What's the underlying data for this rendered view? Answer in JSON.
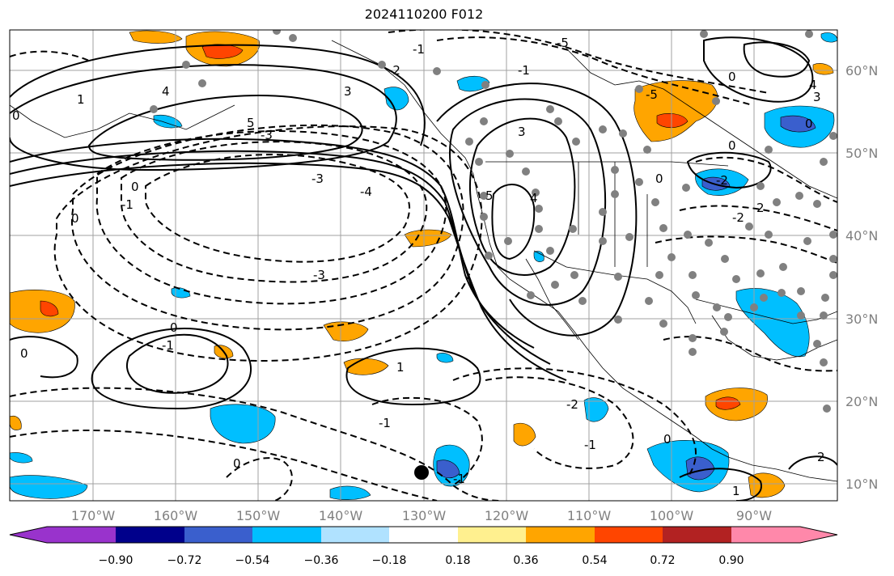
{
  "title": "2024110200 F012",
  "map": {
    "lon_ticks": [
      "170°W",
      "160°W",
      "150°W",
      "140°W",
      "130°W",
      "120°W",
      "110°W",
      "100°W",
      "90°W"
    ],
    "lat_ticks": [
      "60°N",
      "50°N",
      "40°N",
      "30°N",
      "20°N",
      "10°N"
    ],
    "contour_labels": [
      "-3",
      "-4",
      "-5",
      "-2",
      "-1",
      "0",
      "1",
      "2",
      "3",
      "4",
      "5"
    ]
  },
  "colorbar": {
    "ticks": [
      "−0.90",
      "−0.72",
      "−0.54",
      "−0.36",
      "−0.18",
      "0.18",
      "0.36",
      "0.54",
      "0.72",
      "0.90"
    ],
    "colors": {
      "under": "#9933cc",
      "c1": "#00008b",
      "c2": "#3a5fcd",
      "c3": "#00bfff",
      "c4": "#b0e2ff",
      "c5": "#ffffff",
      "c6": "#fff08f",
      "c7": "#ffa500",
      "c8": "#ff4500",
      "c9": "#b22222",
      "over": "#ff88aa"
    }
  },
  "colors": {
    "grid": "#a0a0a0",
    "coast": "#000000",
    "dots": "#808080"
  }
}
